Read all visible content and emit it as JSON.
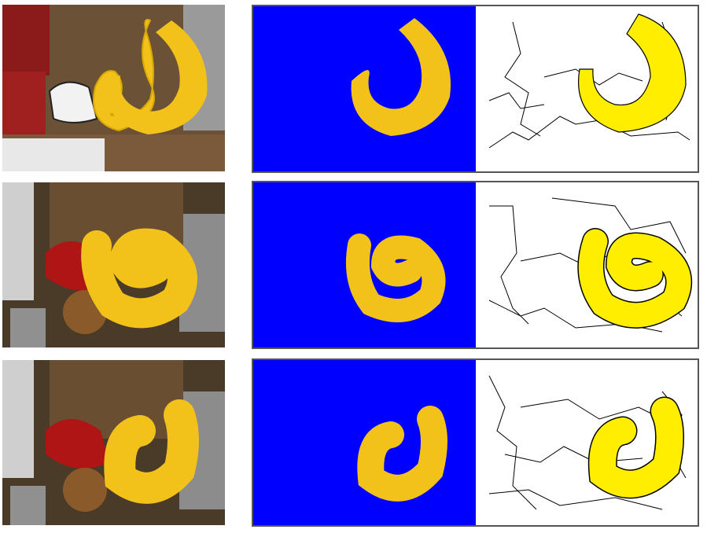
{
  "figure": {
    "rows": [
      {
        "id": "row-1"
      },
      {
        "id": "row-2"
      },
      {
        "id": "row-3"
      }
    ],
    "colors": {
      "segmentation_background": "#0000ff",
      "object_yellow": "#f2c21b",
      "object_highlight": "#ffee00",
      "contour_line": "#000000",
      "contour_background": "#ffffff"
    }
  }
}
